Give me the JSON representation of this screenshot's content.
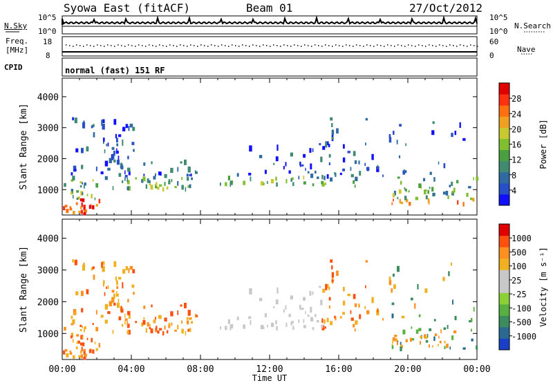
{
  "header": {
    "radar": "Syowa East (fitACF)",
    "beam": "Beam 01",
    "date": "27/Oct/2012"
  },
  "noise_panel": {
    "left_label": "N.Sky",
    "left_top_tick": "10^5",
    "left_bottom_tick": "10^0",
    "right_label": "N.Search",
    "right_top_tick": "10^5",
    "right_bottom_tick": "10^0"
  },
  "freq_panel": {
    "left_label_1": "Freq.",
    "left_label_2": "[MHz]",
    "left_top_tick": "18",
    "left_bottom_tick": "8",
    "right_label": "Nave",
    "right_top_tick": "60",
    "right_bottom_tick": "0"
  },
  "cpid": {
    "label": "CPID",
    "text": "normal (fast) 151 RF"
  },
  "chart_data": [
    {
      "type": "heatmap",
      "name": "power",
      "ylabel": "Slant Range [km]",
      "xlabel": "",
      "yticks": [
        1000,
        2000,
        3000,
        4000
      ],
      "ylim": [
        180,
        4600
      ],
      "xlim": [
        0,
        24
      ],
      "colorbar": {
        "label": "Power [dB]",
        "ticks": [
          "4",
          "8",
          "12",
          "16",
          "20",
          "24",
          "28"
        ],
        "colors": [
          "#1010ff",
          "#2750c8",
          "#2f6aa0",
          "#3f8a70",
          "#4aa040",
          "#80c030",
          "#c8c830",
          "#f0a020",
          "#ff7010",
          "#ff3010",
          "#e00000"
        ]
      }
    },
    {
      "type": "heatmap",
      "name": "velocity",
      "ylabel": "Slant Range [km]",
      "xlabel": "Time UT",
      "yticks": [
        1000,
        2000,
        3000,
        4000
      ],
      "ylim": [
        180,
        4600
      ],
      "xlim": [
        0,
        24
      ],
      "xticks": [
        "00:00",
        "04:00",
        "08:00",
        "12:00",
        "16:00",
        "20:00",
        "00:00"
      ],
      "colorbar": {
        "label": "Velocity [m s⁻¹]",
        "ticks": [
          "1000",
          "500",
          "100",
          "25",
          "-25",
          "-100",
          "-500",
          "-1000"
        ],
        "colors": [
          "#1a40c8",
          "#2a6a90",
          "#3c8c60",
          "#58b040",
          "#8cd038",
          "#c8c8c8",
          "#c8c8c8",
          "#f0b020",
          "#ff9020",
          "#ff5010",
          "#e00000"
        ]
      }
    }
  ]
}
